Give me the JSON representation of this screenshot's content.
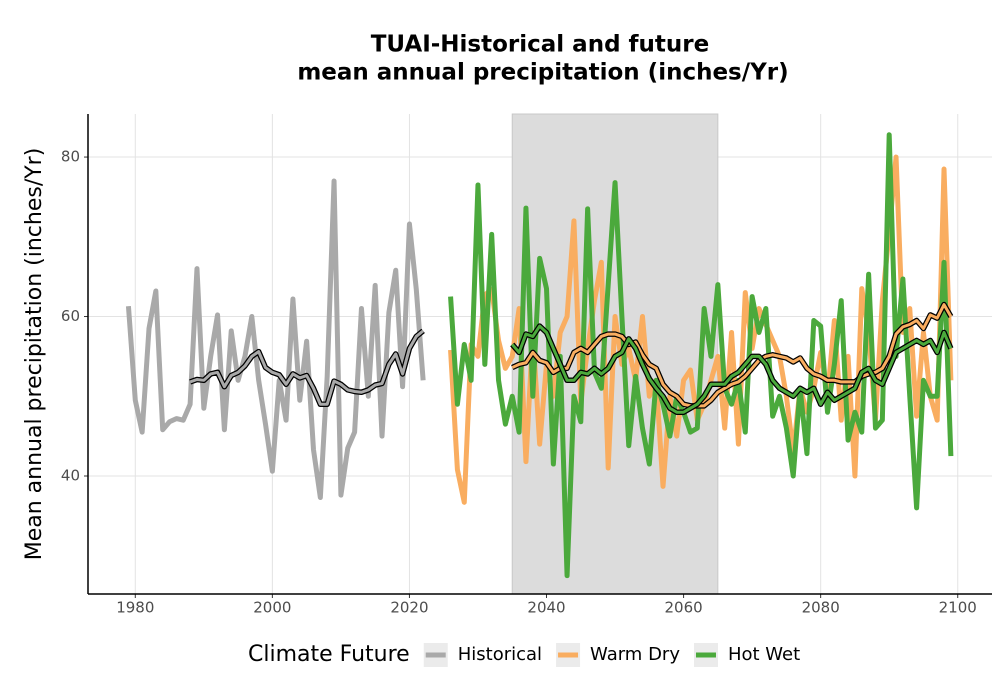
{
  "chart_data": {
    "type": "line",
    "title": [
      "TUAI-Historical and future",
      "mean annual precipitation (inches/Yr)"
    ],
    "y_label": "Mean annual precipitation (inches/Yr)",
    "legend_title": "Climate Future",
    "legend_position": "bottom",
    "grid": true,
    "xlim": [
      1973.1,
      2105
    ],
    "xticks": [
      1980,
      2000,
      2020,
      2040,
      2060,
      2080,
      2100
    ],
    "ylim": [
      25.2,
      85.4
    ],
    "yticks": [
      40,
      60,
      80
    ],
    "shaded_period": [
      2035,
      2065
    ],
    "series": [
      {
        "name": "Historical",
        "color": "#a9a9a9",
        "x": [
          1979,
          1980,
          1981,
          1982,
          1983,
          1984,
          1985,
          1986,
          1987,
          1988,
          1989,
          1990,
          1991,
          1992,
          1993,
          1994,
          1995,
          1996,
          1997,
          1998,
          1999,
          2000,
          2001,
          2002,
          2003,
          2004,
          2005,
          2006,
          2007,
          2008,
          2009,
          2010,
          2011,
          2012,
          2013,
          2014,
          2015,
          2016,
          2017,
          2018,
          2019,
          2020,
          2021,
          2022
        ],
        "values": [
          61.3,
          49.5,
          45.5,
          58.5,
          63.2,
          45.8,
          46.8,
          47.2,
          47,
          49,
          66,
          48.5,
          55,
          60.2,
          45.8,
          58.2,
          52,
          55,
          60,
          52,
          46.5,
          40.6,
          52,
          47,
          62.2,
          49.5,
          56.9,
          43.3,
          37.3,
          52.5,
          77,
          37.6,
          43.5,
          45.5,
          61,
          50,
          63.9,
          45,
          60.5,
          65.8,
          51.2,
          71.6,
          63.4,
          52
        ],
        "smooth": {
          "x": [
            1988,
            1989,
            1990,
            1991,
            1992,
            1993,
            1994,
            1995,
            1996,
            1997,
            1998,
            1999,
            2000,
            2001,
            2002,
            2003,
            2004,
            2005,
            2006,
            2007,
            2008,
            2009,
            2010,
            2011,
            2012,
            2013,
            2014,
            2015,
            2016,
            2017,
            2018,
            2019,
            2020,
            2021,
            2022
          ],
          "values": [
            51.8,
            52.1,
            52.0,
            52.8,
            53.0,
            51.2,
            52.6,
            53.0,
            53.8,
            55.0,
            55.6,
            53.6,
            53.0,
            52.7,
            51.5,
            52.8,
            52.3,
            52.6,
            51.0,
            49.0,
            49.0,
            51.9,
            51.5,
            50.8,
            50.6,
            50.5,
            50.8,
            51.4,
            51.6,
            54.0,
            55.3,
            52.8,
            56.0,
            57.5,
            58.2
          ]
        }
      },
      {
        "name": "Warm Dry",
        "color": "#f9ad60",
        "x": [
          2026,
          2027,
          2028,
          2029,
          2030,
          2031,
          2032,
          2033,
          2034,
          2035,
          2036,
          2037,
          2038,
          2039,
          2040,
          2041,
          2042,
          2043,
          2044,
          2045,
          2046,
          2047,
          2048,
          2049,
          2050,
          2051,
          2052,
          2053,
          2054,
          2055,
          2056,
          2057,
          2058,
          2059,
          2060,
          2061,
          2062,
          2063,
          2064,
          2065,
          2066,
          2067,
          2068,
          2069,
          2070,
          2071,
          2072,
          2073,
          2074,
          2075,
          2076,
          2077,
          2078,
          2079,
          2080,
          2081,
          2082,
          2083,
          2084,
          2085,
          2086,
          2087,
          2088,
          2089,
          2090,
          2091,
          2092,
          2093,
          2094,
          2095,
          2096,
          2097,
          2098,
          2099
        ],
        "values": [
          55.8,
          40.8,
          36.7,
          56.5,
          55,
          62.7,
          63.4,
          57,
          53.5,
          55,
          61,
          41.8,
          58,
          44,
          54,
          50,
          58,
          60,
          72,
          49.2,
          56,
          62,
          66.8,
          41,
          60,
          54,
          56,
          52,
          60,
          50,
          52,
          38.7,
          50,
          45,
          52,
          53.3,
          47,
          49,
          52,
          55,
          46,
          58,
          44,
          63,
          56,
          61,
          59,
          57,
          55,
          50,
          43,
          51,
          48,
          51,
          55.5,
          50,
          59.5,
          47,
          55,
          40,
          63.5,
          58,
          47,
          62,
          70.5,
          80,
          58,
          61,
          47.5,
          58,
          50,
          47,
          78.5,
          52
        ],
        "smooth": {
          "x": [
            2035,
            2036,
            2037,
            2038,
            2039,
            2040,
            2041,
            2042,
            2043,
            2044,
            2045,
            2046,
            2047,
            2048,
            2049,
            2050,
            2051,
            2052,
            2053,
            2054,
            2055,
            2056,
            2057,
            2058,
            2059,
            2060,
            2061,
            2062,
            2063,
            2064,
            2065,
            2066,
            2067,
            2068,
            2069,
            2070,
            2071,
            2072,
            2073,
            2074,
            2075,
            2076,
            2077,
            2078,
            2079,
            2080,
            2081,
            2082,
            2083,
            2084,
            2085,
            2086,
            2087,
            2088,
            2089,
            2090,
            2091,
            2092,
            2093,
            2094,
            2095,
            2096,
            2097,
            2098,
            2099
          ],
          "values": [
            53.6,
            54.0,
            54.2,
            55.5,
            54.5,
            54.2,
            53.0,
            53.5,
            53.5,
            55.5,
            56.0,
            55.5,
            56.5,
            57.5,
            57.8,
            57.8,
            57.5,
            56.5,
            56.8,
            55.2,
            54.0,
            53.5,
            51.5,
            50.5,
            50.0,
            49.0,
            48.8,
            48.8,
            48.8,
            49.5,
            50.5,
            51.0,
            51.5,
            51.8,
            52.5,
            53.5,
            54.5,
            55.0,
            55.2,
            55.0,
            54.8,
            54.3,
            54.8,
            53.5,
            52.8,
            52.5,
            52.0,
            52.0,
            51.8,
            51.8,
            51.8,
            52.5,
            52.8,
            53.0,
            53.5,
            55.0,
            57.8,
            58.7,
            59.0,
            59.5,
            58.5,
            60.2,
            59.8,
            61.5,
            60.0
          ]
        }
      },
      {
        "name": "Hot Wet",
        "color": "#4ba93c",
        "x": [
          2026,
          2027,
          2028,
          2029,
          2030,
          2031,
          2032,
          2033,
          2034,
          2035,
          2036,
          2037,
          2038,
          2039,
          2040,
          2041,
          2042,
          2043,
          2044,
          2045,
          2046,
          2047,
          2048,
          2049,
          2050,
          2051,
          2052,
          2053,
          2054,
          2055,
          2056,
          2057,
          2058,
          2059,
          2060,
          2061,
          2062,
          2063,
          2064,
          2065,
          2066,
          2067,
          2068,
          2069,
          2070,
          2071,
          2072,
          2073,
          2074,
          2075,
          2076,
          2077,
          2078,
          2079,
          2080,
          2081,
          2082,
          2083,
          2084,
          2085,
          2086,
          2087,
          2088,
          2089,
          2090,
          2091,
          2092,
          2093,
          2094,
          2095,
          2096,
          2097,
          2098,
          2099
        ],
        "values": [
          62.5,
          49,
          56.5,
          52,
          76.5,
          54,
          70.3,
          52,
          46.5,
          50,
          45.5,
          73.6,
          50,
          67.3,
          63.5,
          41.5,
          55,
          27.5,
          50,
          46.8,
          73.5,
          53,
          51,
          64,
          76.8,
          60,
          43.8,
          52.5,
          46,
          41.5,
          52,
          49,
          45,
          50,
          48,
          45.5,
          46,
          61,
          55,
          64,
          51,
          49,
          52,
          45.5,
          62.5,
          58,
          61,
          47.5,
          50,
          46,
          40,
          51,
          42.8,
          59.5,
          58.8,
          48,
          54,
          62,
          44.5,
          48,
          45.5,
          65.3,
          46,
          47,
          82.8,
          55,
          64.7,
          50,
          36,
          52,
          50,
          50,
          66.8,
          42.5
        ],
        "smooth": {
          "x": [
            2035,
            2036,
            2037,
            2038,
            2039,
            2040,
            2041,
            2042,
            2043,
            2044,
            2045,
            2046,
            2047,
            2048,
            2049,
            2050,
            2051,
            2052,
            2053,
            2054,
            2055,
            2056,
            2057,
            2058,
            2059,
            2060,
            2061,
            2062,
            2063,
            2064,
            2065,
            2066,
            2067,
            2068,
            2069,
            2070,
            2071,
            2072,
            2073,
            2074,
            2075,
            2076,
            2077,
            2078,
            2079,
            2080,
            2081,
            2082,
            2083,
            2084,
            2085,
            2086,
            2087,
            2088,
            2089,
            2090,
            2091,
            2092,
            2093,
            2094,
            2095,
            2096,
            2097,
            2098,
            2099
          ],
          "values": [
            56.5,
            55.5,
            57.8,
            57.5,
            58.8,
            58.0,
            56.0,
            54.0,
            52.0,
            52.0,
            53.0,
            52.8,
            53.5,
            52.8,
            53.5,
            55.0,
            55.5,
            57.2,
            56.0,
            54.0,
            52.2,
            51.0,
            50.0,
            48.5,
            48.0,
            48.0,
            48.5,
            49.0,
            50.0,
            51.5,
            51.5,
            51.5,
            52.5,
            53.0,
            54.0,
            55.0,
            55.0,
            54.0,
            52.0,
            51.0,
            50.5,
            50.0,
            51.0,
            50.5,
            51.0,
            49.0,
            50.5,
            49.5,
            50.0,
            50.5,
            51.0,
            53.0,
            53.5,
            52.0,
            51.5,
            53.5,
            55.5,
            56.0,
            56.5,
            57.0,
            56.5,
            57.0,
            55.5,
            58.0,
            56.0
          ]
        }
      }
    ]
  }
}
